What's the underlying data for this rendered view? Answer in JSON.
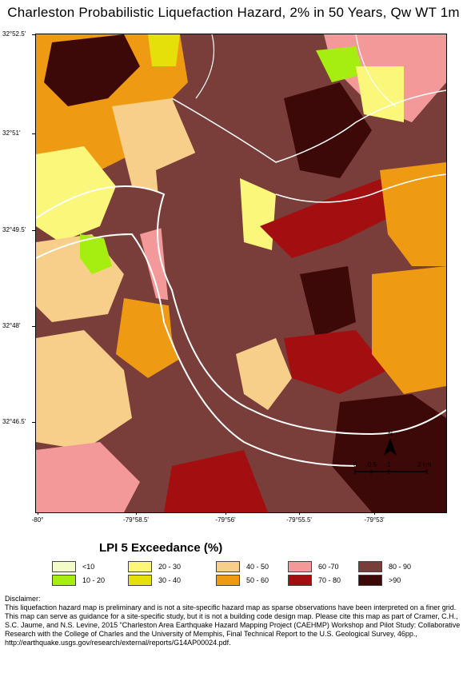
{
  "title": "Charleston Probabilistic Liquefaction Hazard, 2% in 50 Years, Qw WT 1m",
  "latitude_labels": [
    "32°52.5'",
    "32°51'",
    "32°49.5'",
    "32°48'",
    "32°46.5'"
  ],
  "longitude_labels": [
    "-80°",
    "-79°58.5'",
    "-79°56'",
    "-79°55.5'",
    "-79°53'"
  ],
  "north_label": "N",
  "scale_labels": [
    "0",
    "0.5",
    "1",
    "2 km"
  ],
  "legend": {
    "title": "LPI 5 Exceedance (%)",
    "items": [
      {
        "label": "<10",
        "color": "#f3fbc8"
      },
      {
        "label": "10 - 20",
        "color": "#a6ee12"
      },
      {
        "label": "20 - 30",
        "color": "#fbf77a"
      },
      {
        "label": "30 - 40",
        "color": "#e5df0a"
      },
      {
        "label": "40 - 50",
        "color": "#f8cf8a"
      },
      {
        "label": "50 - 60",
        "color": "#ee9a12"
      },
      {
        "label": "60 -70",
        "color": "#f4999a"
      },
      {
        "label": "70 - 80",
        "color": "#a30e10"
      },
      {
        "label": "80 - 90",
        "color": "#7a3e3a"
      },
      {
        "label": ">90",
        "color": "#3d0808"
      }
    ]
  },
  "disclaimer": {
    "heading": "Disclaimer:",
    "text": "This liquefaction  hazard map is preliminary and is not a site-specific hazard map as sparse observations have been interpreted on a finer grid. This map can serve as guidance for a site-specific study, but it is not a building code design map. Please cite this map as part of Cramer, C.H., S.C. Jaume, and N.S. Levine, 2015 \"Charleston Area Earthquake Hazard Mapping Project (CAEHMP) Workshop and Pilot Study: Collaborative Research with the College of Charles and the University of Memphis, Final Technical Report to the U.S. Geological Survey, 46pp., http://earthquake.usgs.gov/research/external/reports/G14AP00024.pdf."
  }
}
